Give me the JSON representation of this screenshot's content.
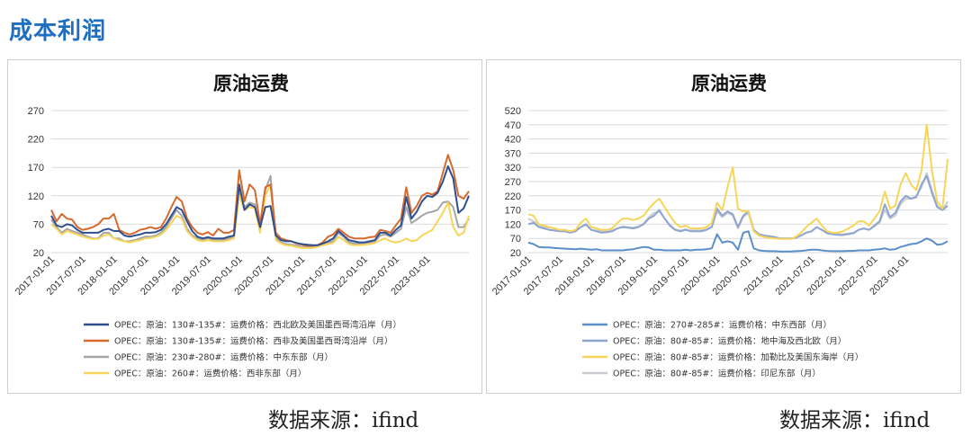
{
  "header": {
    "title": "成本利润"
  },
  "sources": [
    "数据来源：ifind",
    "数据来源：ifind"
  ],
  "chart_data": [
    {
      "type": "line",
      "title": "原油运费",
      "ylim": [
        20,
        270
      ],
      "yticks": [
        20,
        70,
        120,
        170,
        220,
        270
      ],
      "xticks": [
        "2017-01-01",
        "2017-07-01",
        "2018-01-01",
        "2018-07-01",
        "2019-01-01",
        "2019-07-01",
        "2020-01-01",
        "2020-07-01",
        "2021-01-01",
        "2021-07-01",
        "2022-01-01",
        "2022-07-01",
        "2023-01-01"
      ],
      "x_start": "2017-01",
      "grid": true,
      "legend": "bottom",
      "series": [
        {
          "name": "OPEC：原油：130#-135#：运费价格：西北欧及美国墨西哥湾沿岸（月）",
          "color": "#2f4f8f",
          "values": [
            85,
            68,
            65,
            70,
            68,
            60,
            55,
            55,
            55,
            55,
            60,
            62,
            58,
            58,
            50,
            48,
            50,
            52,
            55,
            55,
            56,
            60,
            70,
            85,
            100,
            95,
            75,
            58,
            48,
            45,
            47,
            45,
            45,
            45,
            48,
            50,
            140,
            95,
            105,
            100,
            65,
            100,
            102,
            50,
            42,
            40,
            40,
            37,
            35,
            34,
            33,
            33,
            36,
            40,
            45,
            58,
            50,
            42,
            40,
            38,
            38,
            40,
            42,
            55,
            55,
            50,
            60,
            68,
            118,
            80,
            92,
            110,
            120,
            118,
            125,
            145,
            172,
            150,
            90,
            98,
            120
          ]
        },
        {
          "name": "OPEC：原油：130#-135#：运费价格：西非及美国墨西哥湾沿岸（月）",
          "color": "#d7692d",
          "values": [
            95,
            75,
            88,
            80,
            78,
            65,
            60,
            62,
            65,
            70,
            80,
            80,
            88,
            60,
            55,
            52,
            55,
            60,
            62,
            65,
            62,
            65,
            80,
            100,
            118,
            110,
            80,
            65,
            55,
            52,
            56,
            50,
            62,
            55,
            55,
            60,
            165,
            110,
            140,
            130,
            70,
            135,
            140,
            55,
            45,
            42,
            40,
            36,
            34,
            32,
            32,
            33,
            38,
            48,
            52,
            62,
            55,
            48,
            45,
            45,
            45,
            47,
            48,
            60,
            58,
            55,
            68,
            80,
            135,
            90,
            102,
            120,
            125,
            122,
            128,
            160,
            192,
            165,
            120,
            115,
            128
          ]
        },
        {
          "name": "OPEC：原油：230#-280#：运费价格：中东东部（月）",
          "color": "#a5a5a5",
          "values": [
            78,
            65,
            55,
            62,
            58,
            55,
            52,
            48,
            45,
            45,
            55,
            55,
            45,
            45,
            40,
            40,
            42,
            45,
            48,
            48,
            50,
            55,
            65,
            80,
            95,
            85,
            62,
            50,
            45,
            42,
            45,
            42,
            42,
            42,
            45,
            48,
            130,
            100,
            108,
            105,
            60,
            130,
            155,
            45,
            38,
            35,
            34,
            32,
            30,
            30,
            30,
            32,
            36,
            38,
            40,
            55,
            48,
            38,
            36,
            36,
            36,
            38,
            40,
            50,
            52,
            48,
            55,
            62,
            100,
            72,
            78,
            85,
            90,
            92,
            95,
            108,
            110,
            100,
            65,
            65,
            80
          ]
        },
        {
          "name": "OPEC：原油：260#：运费价格：西非东部（月）",
          "color": "#f7d55a",
          "values": [
            70,
            62,
            52,
            58,
            55,
            52,
            48,
            46,
            44,
            44,
            50,
            52,
            45,
            42,
            40,
            38,
            40,
            42,
            45,
            46,
            48,
            52,
            60,
            72,
            85,
            80,
            58,
            48,
            42,
            40,
            42,
            40,
            40,
            40,
            42,
            45,
            120,
            95,
            100,
            98,
            55,
            120,
            140,
            42,
            36,
            33,
            32,
            30,
            28,
            28,
            28,
            30,
            33,
            35,
            37,
            48,
            42,
            35,
            33,
            33,
            34,
            35,
            37,
            42,
            45,
            40,
            38,
            40,
            45,
            40,
            42,
            50,
            55,
            60,
            75,
            90,
            108,
            65,
            50,
            55,
            85
          ]
        }
      ]
    },
    {
      "type": "line",
      "title": "原油运费",
      "ylim": [
        20,
        520
      ],
      "yticks": [
        20,
        70,
        120,
        170,
        220,
        270,
        320,
        370,
        420,
        470,
        520
      ],
      "xticks": [
        "2017-01-01",
        "2017-07-01",
        "2018-01-01",
        "2018-07-01",
        "2019-01-01",
        "2019-07-01",
        "2020-01-01",
        "2020-07-01",
        "2021-01-01",
        "2021-07-01",
        "2022-01-01",
        "2022-07-01",
        "2023-01-01"
      ],
      "x_start": "2017-01",
      "grid": true,
      "legend": "bottom",
      "series": [
        {
          "name": "OPEC：原油：270#-285#：运费价格：中东西部（月）",
          "color": "#5b8fc7",
          "values": [
            55,
            50,
            40,
            38,
            38,
            36,
            35,
            34,
            33,
            32,
            34,
            32,
            30,
            32,
            28,
            28,
            28,
            28,
            28,
            30,
            32,
            36,
            40,
            38,
            30,
            30,
            28,
            28,
            28,
            28,
            30,
            28,
            30,
            30,
            32,
            35,
            85,
            55,
            60,
            55,
            30,
            90,
            95,
            35,
            28,
            26,
            25,
            25,
            24,
            24,
            24,
            25,
            26,
            28,
            30,
            30,
            28,
            26,
            25,
            25,
            25,
            26,
            26,
            28,
            28,
            28,
            30,
            32,
            35,
            30,
            32,
            40,
            45,
            50,
            52,
            60,
            70,
            62,
            48,
            50,
            60
          ]
        },
        {
          "name": "OPEC：原油：80#-85#：运费价格：地中海及西北欧（月）",
          "color": "#8ea6cf",
          "values": [
            120,
            125,
            110,
            105,
            100,
            98,
            95,
            95,
            90,
            95,
            110,
            120,
            100,
            95,
            90,
            92,
            95,
            105,
            110,
            108,
            105,
            110,
            120,
            140,
            150,
            170,
            140,
            115,
            100,
            95,
            100,
            95,
            95,
            95,
            100,
            110,
            175,
            150,
            165,
            155,
            110,
            150,
            165,
            100,
            85,
            80,
            78,
            75,
            70,
            70,
            70,
            72,
            80,
            90,
            95,
            110,
            100,
            88,
            85,
            82,
            82,
            85,
            88,
            100,
            105,
            100,
            115,
            130,
            190,
            145,
            160,
            200,
            220,
            210,
            215,
            260,
            290,
            230,
            180,
            170,
            185
          ]
        },
        {
          "name": "OPEC：原油：80#-85#：运费价格：加勒比及美国东海岸（月）",
          "color": "#f7d55a",
          "values": [
            155,
            150,
            120,
            115,
            110,
            105,
            100,
            100,
            95,
            100,
            125,
            140,
            110,
            105,
            100,
            100,
            105,
            125,
            140,
            140,
            135,
            140,
            150,
            175,
            195,
            210,
            180,
            150,
            125,
            110,
            115,
            105,
            105,
            105,
            110,
            125,
            195,
            170,
            250,
            320,
            175,
            165,
            165,
            95,
            80,
            75,
            72,
            70,
            68,
            68,
            68,
            75,
            90,
            110,
            125,
            140,
            115,
            95,
            90,
            90,
            95,
            105,
            115,
            130,
            130,
            115,
            140,
            165,
            235,
            175,
            185,
            260,
            300,
            260,
            240,
            310,
            470,
            310,
            200,
            175,
            350
          ]
        },
        {
          "name": "OPEC：原油：80#-85#：运费价格：印尼东部（月）",
          "color": "#c8cbd3",
          "values": [
            140,
            130,
            115,
            110,
            108,
            105,
            100,
            100,
            95,
            98,
            110,
            118,
            100,
            98,
            95,
            95,
            98,
            105,
            112,
            110,
            108,
            112,
            122,
            145,
            160,
            165,
            140,
            118,
            102,
            98,
            102,
            98,
            98,
            98,
            102,
            112,
            165,
            145,
            160,
            150,
            105,
            145,
            160,
            95,
            82,
            78,
            76,
            73,
            70,
            70,
            70,
            72,
            80,
            90,
            95,
            110,
            100,
            90,
            87,
            85,
            85,
            87,
            90,
            100,
            105,
            100,
            112,
            125,
            170,
            140,
            150,
            190,
            210,
            210,
            220,
            250,
            300,
            240,
            185,
            170,
            200
          ]
        }
      ]
    }
  ]
}
